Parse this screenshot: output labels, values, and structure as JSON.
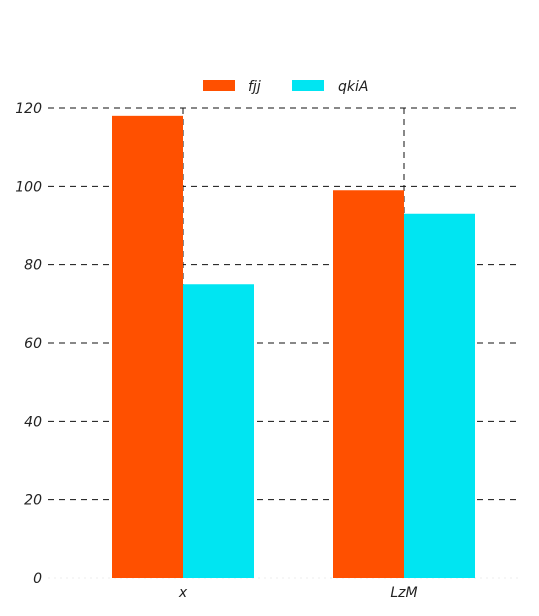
{
  "chart_data": {
    "type": "bar",
    "categories": [
      "x",
      "LzM"
    ],
    "series": [
      {
        "name": "fjj",
        "values": [
          118,
          99
        ],
        "color": "#ff5000"
      },
      {
        "name": "qkiA",
        "values": [
          75,
          93
        ],
        "color": "#00e5f2"
      }
    ],
    "ylim": [
      0,
      120
    ],
    "yticks": [
      "0",
      "20",
      "40",
      "60",
      "80",
      "100",
      "120"
    ],
    "grid": true,
    "grid_style": "dashed",
    "legend_position": "top-center"
  }
}
